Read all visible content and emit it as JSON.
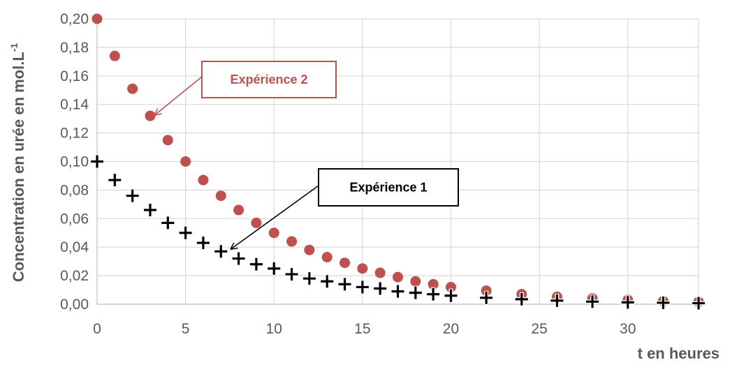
{
  "chart_data": {
    "type": "scatter",
    "xlabel": "t en heures",
    "ylabel": "Concentration en urée en mol.L",
    "ylabel_superscript": "-1",
    "xlim": [
      0,
      34
    ],
    "ylim": [
      0,
      0.2
    ],
    "xticks": [
      "0",
      "5",
      "10",
      "15",
      "20",
      "25",
      "30"
    ],
    "yticks": [
      "0,00",
      "0,02",
      "0,04",
      "0,06",
      "0,08",
      "0,10",
      "0,12",
      "0,14",
      "0,16",
      "0,18",
      "0,20"
    ],
    "grid": true,
    "series": [
      {
        "name": "Expérience 2",
        "marker": "circle",
        "color": "#C0504D",
        "x": [
          0,
          1,
          2,
          3,
          4,
          5,
          6,
          7,
          8,
          9,
          10,
          11,
          12,
          13,
          14,
          15,
          16,
          17,
          18,
          19,
          20,
          22,
          24,
          26,
          28,
          30,
          32,
          34
        ],
        "y": [
          0.2,
          0.174,
          0.151,
          0.132,
          0.115,
          0.1,
          0.087,
          0.076,
          0.066,
          0.057,
          0.05,
          0.044,
          0.038,
          0.033,
          0.029,
          0.025,
          0.022,
          0.019,
          0.016,
          0.014,
          0.012,
          0.0095,
          0.007,
          0.0052,
          0.004,
          0.003,
          0.0022,
          0.0016
        ]
      },
      {
        "name": "Expérience 1",
        "marker": "plus",
        "color": "#000000",
        "x": [
          0,
          1,
          2,
          3,
          4,
          5,
          6,
          7,
          8,
          9,
          10,
          11,
          12,
          13,
          14,
          15,
          16,
          17,
          18,
          19,
          20,
          22,
          24,
          26,
          28,
          30,
          32,
          34
        ],
        "y": [
          0.1,
          0.087,
          0.076,
          0.066,
          0.057,
          0.05,
          0.043,
          0.037,
          0.032,
          0.028,
          0.025,
          0.021,
          0.018,
          0.016,
          0.014,
          0.012,
          0.011,
          0.009,
          0.008,
          0.007,
          0.006,
          0.0045,
          0.0035,
          0.0025,
          0.0018,
          0.0013,
          0.001,
          0.0007
        ]
      }
    ],
    "annotations": [
      {
        "text": "Expérience 2",
        "color": "#C0504D",
        "arrow_to": {
          "x": 3.3,
          "y": 0.133
        }
      },
      {
        "text": "Expérience 1",
        "color": "#000000",
        "arrow_to": {
          "x": 7.6,
          "y": 0.039
        }
      }
    ]
  }
}
